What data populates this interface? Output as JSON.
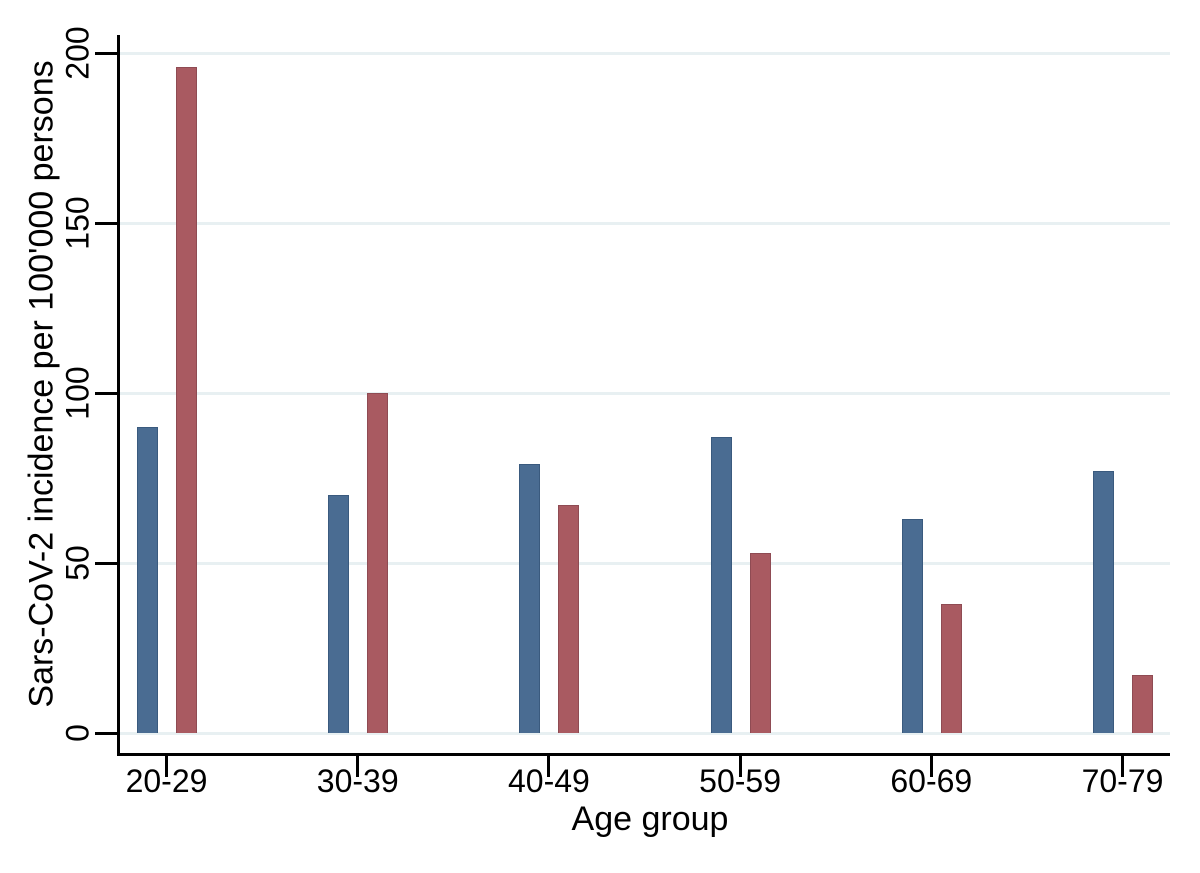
{
  "chart_data": {
    "type": "bar",
    "title": "",
    "xlabel": "Age group",
    "ylabel": "Sars-CoV-2 incidence per 100'000 persons",
    "categories": [
      "20-29",
      "30-39",
      "40-49",
      "50-59",
      "60-69",
      "70-79"
    ],
    "series": [
      {
        "name": "series-blue",
        "color": "#4a6c92",
        "border_color": "#3a5a7e",
        "values": [
          90,
          70,
          79,
          87,
          63,
          77
        ]
      },
      {
        "name": "series-red",
        "color": "#a95a61",
        "border_color": "#8f4b53",
        "values": [
          196,
          100,
          67,
          53,
          38,
          17
        ]
      }
    ],
    "ylim": [
      0,
      200
    ],
    "yticks": [
      0,
      50,
      100,
      150,
      200
    ],
    "grid": true,
    "legend": "none",
    "gridline_color": "#e8f0f2",
    "axis_color": "#000000",
    "background_color": "#ffffff"
  }
}
